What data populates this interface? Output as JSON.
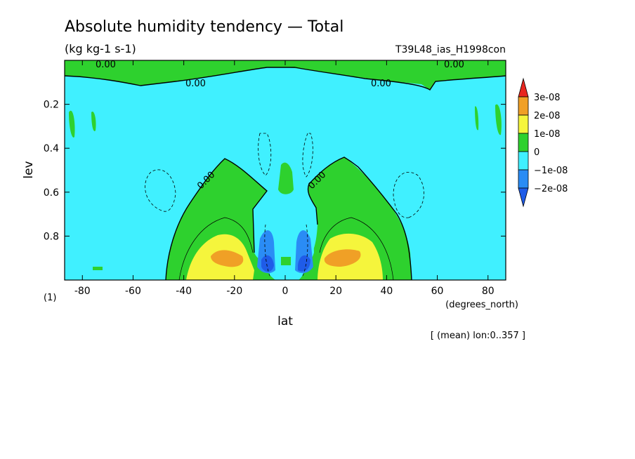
{
  "chart_data": {
    "type": "heatmap",
    "title": "Absolute humidity tendency — Total",
    "units": "(kg kg-1 s-1)",
    "run_label": "T39L48_ias_H1998con",
    "xlabel": "lat",
    "xunits": "(degrees_north)",
    "ylabel": "lev",
    "yunits": "(1)",
    "mean_note": "[ (mean) lon:0..357 ]",
    "xlim": [
      -87,
      87
    ],
    "ylim": [
      1.0,
      0.0
    ],
    "xticks": [
      "-80",
      "-60",
      "-40",
      "-20",
      "0",
      "20",
      "40",
      "60",
      "80"
    ],
    "xtick_values": [
      -80,
      -60,
      -40,
      -20,
      0,
      20,
      40,
      60,
      80
    ],
    "yticks": [
      "0.2",
      "0.4",
      "0.6",
      "0.8"
    ],
    "ytick_values": [
      0.2,
      0.4,
      0.6,
      0.8
    ],
    "contour_label": "0.00",
    "colorbar": {
      "levels": [
        "3e-08",
        "2e-08",
        "1e-08",
        "0",
        "−1e-08",
        "−2e-08"
      ],
      "colors": [
        "#e8261f",
        "#f0a026",
        "#f5f53c",
        "#2ed12e",
        "#40f0ff",
        "#2a8cf5",
        "#1f5ce8"
      ]
    },
    "fill_colors": {
      "background": "#40f0ff",
      "positive_1": "#2ed12e",
      "positive_2": "#f5f53c",
      "positive_3": "#f0a026",
      "negative_1": "#2a8cf5",
      "negative_2": "#1f5ce8"
    }
  }
}
